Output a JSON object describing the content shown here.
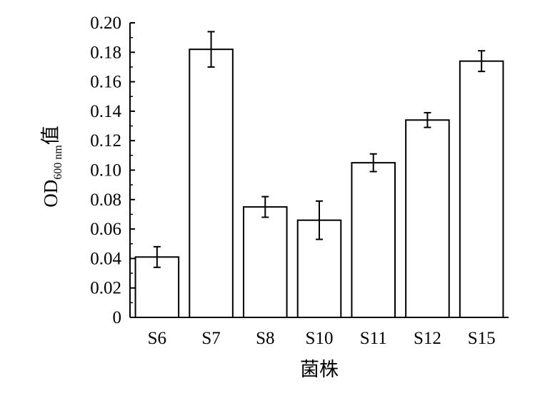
{
  "chart_data": {
    "type": "bar",
    "categories": [
      "S6",
      "S7",
      "S8",
      "S10",
      "S11",
      "S12",
      "S15"
    ],
    "values": [
      0.041,
      0.182,
      0.075,
      0.066,
      0.105,
      0.134,
      0.174
    ],
    "errors": [
      0.007,
      0.012,
      0.007,
      0.013,
      0.006,
      0.005,
      0.007
    ],
    "xlabel": "菌株",
    "ylabel": {
      "main": "OD",
      "subscript": "600 nm",
      "suffix": "值"
    },
    "ylim": [
      0,
      0.2
    ],
    "yticks": [
      "0",
      "0.02",
      "0.04",
      "0.06",
      "0.08",
      "0.10",
      "0.12",
      "0.14",
      "0.16",
      "0.18",
      "0.20"
    ],
    "bar_fill": "#ffffff",
    "bar_stroke": "#000000",
    "grid": false,
    "legend": "none"
  }
}
